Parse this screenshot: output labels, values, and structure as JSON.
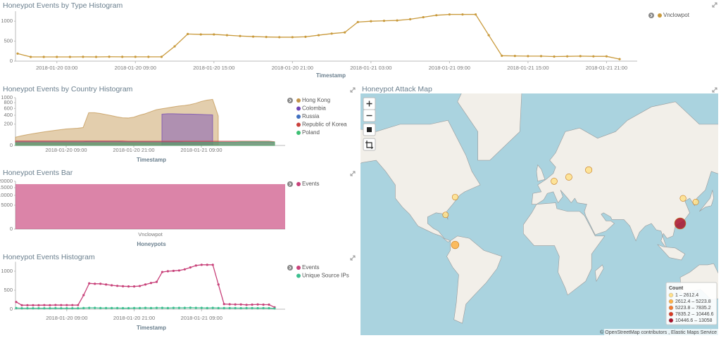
{
  "chart_data": [
    {
      "type": "line",
      "title": "Honeypot Events by Type Histogram",
      "x_label": "Timestamp",
      "x": [
        "2018-01-20 00:00",
        "2018-01-20 01:00",
        "2018-01-20 02:00",
        "2018-01-20 03:00",
        "2018-01-20 04:00",
        "2018-01-20 05:00",
        "2018-01-20 06:00",
        "2018-01-20 07:00",
        "2018-01-20 08:00",
        "2018-01-20 09:00",
        "2018-01-20 10:00",
        "2018-01-20 11:00",
        "2018-01-20 12:00",
        "2018-01-20 13:00",
        "2018-01-20 14:00",
        "2018-01-20 15:00",
        "2018-01-20 16:00",
        "2018-01-20 17:00",
        "2018-01-20 18:00",
        "2018-01-20 19:00",
        "2018-01-20 20:00",
        "2018-01-20 21:00",
        "2018-01-20 22:00",
        "2018-01-20 23:00",
        "2018-01-21 00:00",
        "2018-01-21 01:00",
        "2018-01-21 02:00",
        "2018-01-21 03:00",
        "2018-01-21 04:00",
        "2018-01-21 05:00",
        "2018-01-21 06:00",
        "2018-01-21 07:00",
        "2018-01-21 08:00",
        "2018-01-21 09:00",
        "2018-01-21 10:00",
        "2018-01-21 11:00",
        "2018-01-21 12:00",
        "2018-01-21 13:00",
        "2018-01-21 14:00",
        "2018-01-21 15:00",
        "2018-01-21 16:00",
        "2018-01-21 17:00",
        "2018-01-21 18:00",
        "2018-01-21 19:00",
        "2018-01-21 20:00",
        "2018-01-21 21:00",
        "2018-01-21 22:00"
      ],
      "xlim": [
        "2018-01-20 00:00",
        "2018-01-21 22:00"
      ],
      "xticks": [
        "2018-01-20 03:00",
        "2018-01-20 09:00",
        "2018-01-20 15:00",
        "2018-01-20 21:00",
        "2018-01-21 03:00",
        "2018-01-21 09:00",
        "2018-01-21 15:00",
        "2018-01-21 21:00"
      ],
      "ylim": [
        0,
        1250
      ],
      "yticks": [
        0,
        500,
        1000
      ],
      "series": [
        {
          "name": "Vnclowpot",
          "color": "#c99a3c",
          "values": [
            190,
            105,
            105,
            105,
            105,
            108,
            105,
            110,
            108,
            108,
            108,
            108,
            370,
            680,
            670,
            670,
            650,
            630,
            615,
            605,
            600,
            600,
            610,
            650,
            690,
            720,
            980,
            1000,
            1010,
            1020,
            1050,
            1100,
            1150,
            1170,
            1170,
            1170,
            650,
            135,
            130,
            125,
            125,
            115,
            120,
            125,
            120,
            120,
            50
          ]
        }
      ]
    },
    {
      "type": "area",
      "title": "Honeypot Events by Country Histogram",
      "x_label": "Timestamp",
      "scale": "sqrt",
      "x": [
        "2018-01-20 00:00",
        "2018-01-20 01:00",
        "2018-01-20 02:00",
        "2018-01-20 03:00",
        "2018-01-20 04:00",
        "2018-01-20 05:00",
        "2018-01-20 06:00",
        "2018-01-20 07:00",
        "2018-01-20 08:00",
        "2018-01-20 09:00",
        "2018-01-20 10:00",
        "2018-01-20 11:00",
        "2018-01-20 12:00",
        "2018-01-20 13:00",
        "2018-01-20 14:00",
        "2018-01-20 15:00",
        "2018-01-20 16:00",
        "2018-01-20 17:00",
        "2018-01-20 18:00",
        "2018-01-20 19:00",
        "2018-01-20 20:00",
        "2018-01-20 21:00",
        "2018-01-20 22:00",
        "2018-01-20 23:00",
        "2018-01-21 00:00",
        "2018-01-21 01:00",
        "2018-01-21 02:00",
        "2018-01-21 03:00",
        "2018-01-21 04:00",
        "2018-01-21 05:00",
        "2018-01-21 06:00",
        "2018-01-21 07:00",
        "2018-01-21 08:00",
        "2018-01-21 09:00",
        "2018-01-21 10:00",
        "2018-01-21 11:00",
        "2018-01-21 12:00",
        "2018-01-21 13:00",
        "2018-01-21 14:00",
        "2018-01-21 15:00",
        "2018-01-21 16:00",
        "2018-01-21 17:00",
        "2018-01-21 18:00",
        "2018-01-21 19:00",
        "2018-01-21 20:00",
        "2018-01-21 21:00",
        "2018-01-21 22:00"
      ],
      "xlim": [
        "2018-01-20 00:00",
        "2018-01-21 22:00"
      ],
      "xticks": [
        "2018-01-20 09:00",
        "2018-01-20 21:00",
        "2018-01-21 09:00"
      ],
      "ylim": [
        0,
        1000
      ],
      "yticks": [
        0,
        200,
        400,
        600,
        800,
        1000
      ],
      "series": [
        {
          "name": "Hong Kong",
          "color": "#c1924a",
          "values": [
            30,
            40,
            50,
            60,
            70,
            80,
            90,
            100,
            110,
            120,
            125,
            130,
            140,
            470,
            470,
            450,
            420,
            390,
            360,
            335,
            330,
            350,
            400,
            440,
            500,
            560,
            590,
            620,
            650,
            680,
            700,
            730,
            780,
            850,
            900,
            930,
            380,
            null,
            null,
            null,
            null,
            null,
            null,
            null,
            null,
            null,
            null
          ]
        },
        {
          "name": "Colombia",
          "color": "#6f45b5",
          "values": [
            null,
            null,
            null,
            null,
            null,
            null,
            null,
            null,
            null,
            null,
            null,
            null,
            null,
            null,
            null,
            null,
            null,
            null,
            null,
            null,
            null,
            null,
            null,
            null,
            null,
            null,
            430,
            440,
            440,
            435,
            430,
            430,
            425,
            420,
            415,
            410,
            null,
            null,
            null,
            null,
            null,
            null,
            null,
            null,
            null,
            null,
            null
          ]
        },
        {
          "name": "Russia",
          "color": "#3f6fc0",
          "values": [
            6,
            6,
            6,
            6,
            6,
            6,
            6,
            6,
            6,
            6,
            6,
            6,
            6,
            7,
            7,
            7,
            7,
            7,
            7,
            6,
            6,
            6,
            6,
            6,
            6,
            6,
            6,
            6,
            6,
            6,
            5,
            5,
            5,
            5,
            5,
            5,
            5,
            5,
            5,
            5,
            5,
            5,
            5,
            5,
            5,
            5,
            4
          ]
        },
        {
          "name": "Republic of Korea",
          "color": "#c9403b",
          "values": [
            9,
            9,
            9,
            9,
            9,
            9,
            9,
            9,
            9,
            9,
            9,
            9,
            9,
            9,
            9,
            9,
            9,
            9,
            9,
            9,
            8,
            8,
            8,
            8,
            8,
            8,
            8,
            8,
            8,
            8,
            8,
            8,
            8,
            8,
            8,
            8,
            8,
            8,
            8,
            8,
            8,
            8,
            8,
            8,
            8,
            8,
            6
          ]
        },
        {
          "name": "Poland",
          "color": "#3dbf73",
          "values": [
            3,
            3,
            3,
            3,
            3,
            3,
            3,
            3,
            3,
            3,
            3,
            3,
            3,
            3,
            3,
            3,
            3,
            3,
            3,
            3,
            3,
            3,
            3,
            3,
            3,
            3,
            3,
            3,
            3,
            3,
            4,
            4,
            4,
            4,
            4,
            4,
            4,
            4,
            4,
            4,
            6,
            6,
            6,
            6,
            6,
            6,
            5
          ]
        }
      ]
    },
    {
      "type": "bar",
      "title": "Honeypot Events Bar",
      "x_label": "Honeypots",
      "scale": "sqrt",
      "categories": [
        "Vnclowpot"
      ],
      "ylim": [
        0,
        20000
      ],
      "yticks": [
        0,
        5000,
        10000,
        15000,
        20000
      ],
      "series": [
        {
          "name": "Events",
          "color": "#c8427a",
          "values": [
            17700
          ]
        }
      ]
    },
    {
      "type": "line",
      "title": "Honeypot Events Histogram",
      "x_label": "Timestamp",
      "x": [
        "2018-01-20 00:00",
        "2018-01-20 01:00",
        "2018-01-20 02:00",
        "2018-01-20 03:00",
        "2018-01-20 04:00",
        "2018-01-20 05:00",
        "2018-01-20 06:00",
        "2018-01-20 07:00",
        "2018-01-20 08:00",
        "2018-01-20 09:00",
        "2018-01-20 10:00",
        "2018-01-20 11:00",
        "2018-01-20 12:00",
        "2018-01-20 13:00",
        "2018-01-20 14:00",
        "2018-01-20 15:00",
        "2018-01-20 16:00",
        "2018-01-20 17:00",
        "2018-01-20 18:00",
        "2018-01-20 19:00",
        "2018-01-20 20:00",
        "2018-01-20 21:00",
        "2018-01-20 22:00",
        "2018-01-20 23:00",
        "2018-01-21 00:00",
        "2018-01-21 01:00",
        "2018-01-21 02:00",
        "2018-01-21 03:00",
        "2018-01-21 04:00",
        "2018-01-21 05:00",
        "2018-01-21 06:00",
        "2018-01-21 07:00",
        "2018-01-21 08:00",
        "2018-01-21 09:00",
        "2018-01-21 10:00",
        "2018-01-21 11:00",
        "2018-01-21 12:00",
        "2018-01-21 13:00",
        "2018-01-21 14:00",
        "2018-01-21 15:00",
        "2018-01-21 16:00",
        "2018-01-21 17:00",
        "2018-01-21 18:00",
        "2018-01-21 19:00",
        "2018-01-21 20:00",
        "2018-01-21 21:00",
        "2018-01-21 22:00"
      ],
      "xlim": [
        "2018-01-20 00:00",
        "2018-01-21 22:00"
      ],
      "xticks": [
        "2018-01-20 09:00",
        "2018-01-20 21:00",
        "2018-01-21 09:00"
      ],
      "ylim": [
        0,
        1250
      ],
      "yticks": [
        0,
        500,
        1000
      ],
      "series": [
        {
          "name": "Events",
          "color": "#c8427a",
          "values": [
            190,
            105,
            105,
            105,
            105,
            108,
            105,
            110,
            108,
            108,
            108,
            108,
            370,
            680,
            670,
            670,
            650,
            630,
            615,
            605,
            600,
            600,
            610,
            650,
            690,
            720,
            980,
            1000,
            1010,
            1020,
            1050,
            1100,
            1150,
            1170,
            1170,
            1170,
            650,
            135,
            130,
            125,
            125,
            115,
            120,
            125,
            120,
            120,
            50
          ]
        },
        {
          "name": "Unique Source IPs",
          "color": "#3cbf8f",
          "values": [
            30,
            25,
            25,
            25,
            25,
            25,
            25,
            28,
            25,
            25,
            25,
            25,
            30,
            35,
            35,
            30,
            30,
            30,
            30,
            28,
            28,
            30,
            30,
            35,
            30,
            35,
            35,
            30,
            35,
            35,
            35,
            40,
            35,
            35,
            30,
            35,
            30,
            30,
            30,
            30,
            28,
            30,
            30,
            28,
            30,
            28,
            20
          ]
        }
      ]
    }
  ],
  "map": {
    "title": "Honeypot Attack Map",
    "legend_title": "Count",
    "bins": [
      {
        "from": 1,
        "to": 2612.4,
        "label": "1 – 2612.4",
        "color": "#ffe08a"
      },
      {
        "from": 2612.4,
        "to": 5223.8,
        "label": "2612.4 – 5223.8",
        "color": "#fdb147"
      },
      {
        "from": 5223.8,
        "to": 7835.2,
        "label": "5223.8 – 7835.2",
        "color": "#f47b30"
      },
      {
        "from": 7835.2,
        "to": 10446.6,
        "label": "7835.2 – 10446.6",
        "color": "#d83b24"
      },
      {
        "from": 10446.6,
        "to": 13058,
        "label": "10446.6 – 13058",
        "color": "#a8102a"
      }
    ],
    "markers": [
      {
        "lon": 114,
        "lat": 22,
        "count": 12800
      },
      {
        "lon": -74,
        "lat": 4.6,
        "count": 3000
      },
      {
        "lon": 37.6,
        "lat": 55.7,
        "count": 1500
      },
      {
        "lon": 8.7,
        "lat": 50,
        "count": 1200
      },
      {
        "lon": 21,
        "lat": 52.2,
        "count": 1400
      },
      {
        "lon": -74,
        "lat": 40.7,
        "count": 800
      },
      {
        "lon": -82,
        "lat": 28.5,
        "count": 600
      },
      {
        "lon": 116.4,
        "lat": 39.9,
        "count": 900
      },
      {
        "lon": 127,
        "lat": 37.5,
        "count": 700
      }
    ],
    "attribution": "© OpenStreetMap contributors , Elastic Maps Service"
  }
}
